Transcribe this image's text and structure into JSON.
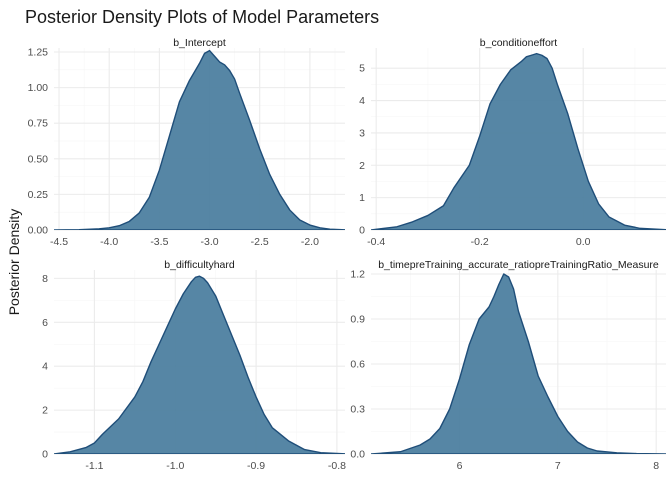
{
  "title": "Posterior Density Plots of Model Parameters",
  "ylabel": "Posterior Density",
  "colors": {
    "fill": "#4d7fa0",
    "line": "#1f4e79",
    "grid": "#ebebeb"
  },
  "chart_data": [
    {
      "type": "area",
      "title": "b_Intercept",
      "xlim": [
        -4.55,
        -1.65
      ],
      "ylim": [
        0,
        1.25
      ],
      "xticks": [
        -4.5,
        -4.0,
        -3.5,
        -3.0,
        -2.5,
        -2.0
      ],
      "xtick_labels": [
        "-4.5",
        "-4.0",
        "-3.5",
        "-3.0",
        "-2.5",
        "-2.0"
      ],
      "yticks": [
        0,
        0.25,
        0.5,
        0.75,
        1.0,
        1.25
      ],
      "ytick_labels": [
        "0.00",
        "0.25",
        "0.50",
        "0.75",
        "1.00",
        "1.25"
      ],
      "x": [
        -4.55,
        -4.3,
        -4.1,
        -4.0,
        -3.9,
        -3.8,
        -3.7,
        -3.6,
        -3.5,
        -3.4,
        -3.3,
        -3.2,
        -3.1,
        -3.05,
        -3.0,
        -2.95,
        -2.9,
        -2.85,
        -2.8,
        -2.75,
        -2.7,
        -2.6,
        -2.5,
        -2.4,
        -2.3,
        -2.2,
        -2.1,
        -2.0,
        -1.9,
        -1.8,
        -1.65
      ],
      "y": [
        0.0,
        0.002,
        0.008,
        0.015,
        0.03,
        0.06,
        0.12,
        0.23,
        0.42,
        0.66,
        0.9,
        1.05,
        1.17,
        1.24,
        1.26,
        1.22,
        1.18,
        1.16,
        1.12,
        1.06,
        0.96,
        0.77,
        0.57,
        0.39,
        0.25,
        0.14,
        0.07,
        0.035,
        0.015,
        0.006,
        0.001
      ]
    },
    {
      "type": "area",
      "title": "b_conditioneffort",
      "xlim": [
        -0.41,
        0.16
      ],
      "ylim": [
        0,
        5.5
      ],
      "xticks": [
        -0.4,
        -0.2,
        0.0
      ],
      "xtick_labels": [
        "-0.4",
        "-0.2",
        "0.0"
      ],
      "yticks": [
        0,
        1,
        2,
        3,
        4,
        5
      ],
      "ytick_labels": [
        "0",
        "1",
        "2",
        "3",
        "4",
        "5"
      ],
      "x": [
        -0.41,
        -0.36,
        -0.33,
        -0.3,
        -0.27,
        -0.25,
        -0.22,
        -0.2,
        -0.18,
        -0.16,
        -0.14,
        -0.12,
        -0.11,
        -0.1,
        -0.09,
        -0.08,
        -0.07,
        -0.06,
        -0.05,
        -0.03,
        -0.01,
        0.01,
        0.03,
        0.05,
        0.08,
        0.11,
        0.16
      ],
      "y": [
        0.0,
        0.1,
        0.25,
        0.45,
        0.75,
        1.3,
        2.0,
        2.9,
        3.9,
        4.5,
        4.95,
        5.2,
        5.35,
        5.4,
        5.45,
        5.4,
        5.3,
        5.0,
        4.5,
        3.6,
        2.5,
        1.5,
        0.8,
        0.4,
        0.15,
        0.05,
        0.01
      ]
    },
    {
      "type": "area",
      "title": "b_difficultyhard",
      "xlim": [
        -1.15,
        -0.79
      ],
      "ylim": [
        0,
        8.2
      ],
      "xticks": [
        -1.1,
        -1.0,
        -0.9,
        -0.8
      ],
      "xtick_labels": [
        "-1.1",
        "-1.0",
        "-0.9",
        "-0.8"
      ],
      "yticks": [
        0,
        2,
        4,
        6,
        8
      ],
      "ytick_labels": [
        "0",
        "2",
        "4",
        "6",
        "8"
      ],
      "x": [
        -1.15,
        -1.13,
        -1.11,
        -1.1,
        -1.09,
        -1.07,
        -1.05,
        -1.04,
        -1.03,
        -1.02,
        -1.01,
        -1.0,
        -0.99,
        -0.98,
        -0.975,
        -0.97,
        -0.965,
        -0.96,
        -0.95,
        -0.94,
        -0.93,
        -0.92,
        -0.91,
        -0.9,
        -0.89,
        -0.88,
        -0.86,
        -0.85,
        -0.84,
        -0.82,
        -0.79
      ],
      "y": [
        0.0,
        0.1,
        0.3,
        0.5,
        0.9,
        1.6,
        2.6,
        3.3,
        4.2,
        5.0,
        5.8,
        6.6,
        7.3,
        7.85,
        8.05,
        8.1,
        8.0,
        7.8,
        7.2,
        6.3,
        5.4,
        4.5,
        3.5,
        2.6,
        1.8,
        1.2,
        0.6,
        0.4,
        0.2,
        0.06,
        0.01
      ]
    },
    {
      "type": "area",
      "title": "b_timepreTraining_accurate_ratiopreTrainingRatio_Measure",
      "xlim": [
        5.1,
        8.1
      ],
      "ylim": [
        0,
        1.2
      ],
      "xticks": [
        6,
        7,
        8
      ],
      "xtick_labels": [
        "6",
        "7",
        "8"
      ],
      "yticks": [
        0,
        0.3,
        0.6,
        0.9,
        1.2
      ],
      "ytick_labels": [
        "0.0",
        "0.3",
        "0.6",
        "0.9",
        "1.2"
      ],
      "x": [
        5.1,
        5.4,
        5.6,
        5.7,
        5.8,
        5.9,
        6.0,
        6.1,
        6.2,
        6.3,
        6.35,
        6.4,
        6.45,
        6.5,
        6.55,
        6.6,
        6.7,
        6.8,
        6.9,
        7.0,
        7.1,
        7.2,
        7.3,
        7.4,
        7.6,
        7.8,
        8.1
      ],
      "y": [
        0.0,
        0.015,
        0.06,
        0.1,
        0.17,
        0.3,
        0.5,
        0.73,
        0.9,
        0.98,
        1.05,
        1.13,
        1.2,
        1.18,
        1.1,
        0.95,
        0.75,
        0.52,
        0.38,
        0.25,
        0.15,
        0.08,
        0.04,
        0.02,
        0.008,
        0.003,
        0.0
      ]
    }
  ]
}
